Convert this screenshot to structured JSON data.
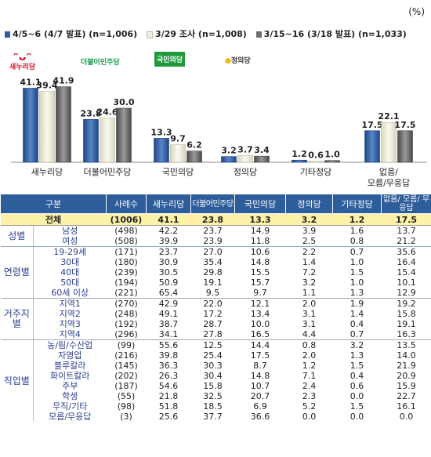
{
  "unit_label": "(%)",
  "logos": {
    "saenuri_mark": "ᵔᴗᵔ",
    "saenuri": "새누리당",
    "minju": "더불어민주당",
    "people": "국민의당",
    "justice": "정의당"
  },
  "colors": {
    "series1": "#2e5fa3",
    "series2": "#f2f0dc",
    "series3": "#6e6e6e",
    "header": "#2d5d9a",
    "total_row": "#fdf2a8"
  },
  "chart_data": {
    "type": "bar",
    "categories": [
      "새누리당",
      "더불어민주당",
      "국민의당",
      "정의당",
      "기타정당",
      "없음/\n모름/무응답"
    ],
    "series": [
      {
        "name": "4/5~6 (4/7 발표) (n=1,006)",
        "values": [
          41.1,
          23.8,
          13.3,
          3.2,
          1.2,
          17.5
        ]
      },
      {
        "name": "3/29 조사 (n=1,008)",
        "values": [
          39.4,
          24.6,
          9.7,
          3.7,
          0.6,
          22.1
        ]
      },
      {
        "name": "3/15~16 (3/18 발표) (n=1,033)",
        "values": [
          41.9,
          30.0,
          6.2,
          3.4,
          1.0,
          17.5
        ]
      }
    ],
    "legend": "top",
    "grid": false
  },
  "table": {
    "headers": [
      "구분",
      "사례수",
      "새누리당",
      "더불어민주당",
      "국민의당",
      "정의당",
      "기타정당",
      "없음/ 모름/ 무응답"
    ],
    "total": {
      "label": "전체",
      "n": "(1006)",
      "values": [
        "41.1",
        "23.8",
        "13.3",
        "3.2",
        "1.2",
        "17.5"
      ]
    },
    "groups": [
      {
        "name": "성별",
        "rows": [
          {
            "label": "남성",
            "n": "(498)",
            "values": [
              "42.2",
              "23.7",
              "14.9",
              "3.9",
              "1.6",
              "13.7"
            ]
          },
          {
            "label": "여성",
            "n": "(508)",
            "values": [
              "39.9",
              "23.9",
              "11.8",
              "2.5",
              "0.8",
              "21.2"
            ]
          }
        ]
      },
      {
        "name": "연령별",
        "rows": [
          {
            "label": "19-29세",
            "n": "(171)",
            "values": [
              "23.7",
              "27.0",
              "10.6",
              "2.2",
              "0.7",
              "35.6"
            ]
          },
          {
            "label": "30대",
            "n": "(180)",
            "values": [
              "30.9",
              "35.4",
              "14.8",
              "1.4",
              "1.0",
              "16.4"
            ]
          },
          {
            "label": "40대",
            "n": "(239)",
            "values": [
              "30.5",
              "29.8",
              "15.5",
              "7.2",
              "1.5",
              "15.4"
            ]
          },
          {
            "label": "50대",
            "n": "(194)",
            "values": [
              "50.9",
              "19.1",
              "15.7",
              "3.2",
              "1.0",
              "10.1"
            ]
          },
          {
            "label": "60세 이상",
            "n": "(221)",
            "values": [
              "65.4",
              "9.5",
              "9.7",
              "1.1",
              "1.3",
              "12.9"
            ]
          }
        ]
      },
      {
        "name": "거주지별",
        "rows": [
          {
            "label": "지역1",
            "n": "(270)",
            "values": [
              "42.9",
              "22.0",
              "12.1",
              "2.0",
              "1.9",
              "19.2"
            ]
          },
          {
            "label": "지역2",
            "n": "(248)",
            "values": [
              "49.1",
              "17.2",
              "13.4",
              "3.1",
              "1.4",
              "15.8"
            ]
          },
          {
            "label": "지역3",
            "n": "(192)",
            "values": [
              "38.7",
              "28.7",
              "10.0",
              "3.1",
              "0.4",
              "19.1"
            ]
          },
          {
            "label": "지역4",
            "n": "(296)",
            "values": [
              "34.1",
              "27.8",
              "16.5",
              "4.4",
              "0.7",
              "16.3"
            ]
          }
        ]
      },
      {
        "name": "직업별",
        "rows": [
          {
            "label": "농/림/수산업",
            "n": "(99)",
            "values": [
              "55.6",
              "12.5",
              "14.4",
              "0.8",
              "3.2",
              "13.5"
            ]
          },
          {
            "label": "자영업",
            "n": "(216)",
            "values": [
              "39.8",
              "25.4",
              "17.5",
              "2.0",
              "1.3",
              "14.0"
            ]
          },
          {
            "label": "블루칼라",
            "n": "(145)",
            "values": [
              "36.3",
              "30.3",
              "8.7",
              "1.2",
              "1.5",
              "21.9"
            ]
          },
          {
            "label": "화이트칼라",
            "n": "(202)",
            "values": [
              "26.3",
              "30.4",
              "14.8",
              "7.1",
              "0.4",
              "20.9"
            ]
          },
          {
            "label": "주부",
            "n": "(187)",
            "values": [
              "54.6",
              "15.8",
              "10.7",
              "2.4",
              "0.6",
              "15.9"
            ]
          },
          {
            "label": "학생",
            "n": "(55)",
            "values": [
              "21.8",
              "32.5",
              "20.7",
              "2.3",
              "0.0",
              "22.7"
            ]
          },
          {
            "label": "무직/기타",
            "n": "(98)",
            "values": [
              "51.8",
              "18.5",
              "6.9",
              "5.2",
              "1.5",
              "16.1"
            ]
          },
          {
            "label": "모름/무응답",
            "n": "(3)",
            "values": [
              "25.6",
              "37.7",
              "36.6",
              "0.0",
              "0.0",
              "0.0"
            ]
          }
        ]
      }
    ]
  }
}
